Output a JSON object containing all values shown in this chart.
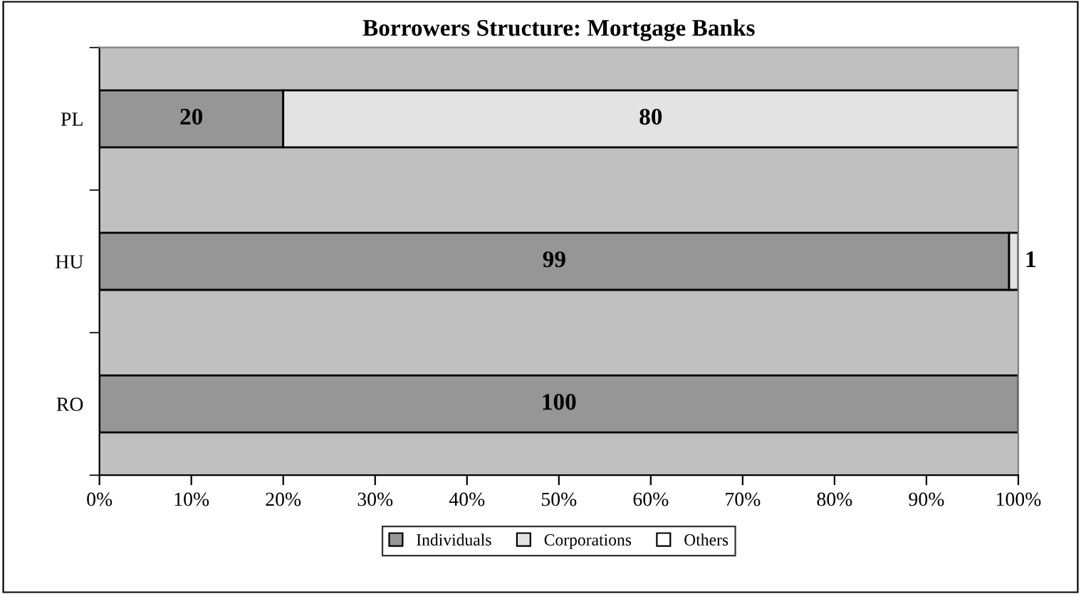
{
  "chart_data": {
    "type": "bar",
    "orientation": "horizontal",
    "stacked": true,
    "title": "Borrowers Structure: Mortgage Banks",
    "categories": [
      "PL",
      "HU",
      "RO"
    ],
    "series": [
      {
        "name": "Individuals",
        "color": "#969696",
        "values": [
          20,
          99,
          100
        ],
        "value_labels": [
          "20",
          "99",
          "100"
        ]
      },
      {
        "name": "Corporations",
        "color": "#e3e3e3",
        "values": [
          80,
          1,
          null
        ],
        "value_labels": [
          "80",
          "1",
          null
        ]
      },
      {
        "name": "Others",
        "color": "#ffffff",
        "values": [
          null,
          null,
          null
        ]
      }
    ],
    "xlim": [
      0,
      100
    ],
    "xticks": [
      {
        "value": 0,
        "label": "0%"
      },
      {
        "value": 10,
        "label": "10%"
      },
      {
        "value": 20,
        "label": "20%"
      },
      {
        "value": 30,
        "label": "30%"
      },
      {
        "value": 40,
        "label": "40%"
      },
      {
        "value": 50,
        "label": "50%"
      },
      {
        "value": 60,
        "label": "60%"
      },
      {
        "value": 70,
        "label": "70%"
      },
      {
        "value": 80,
        "label": "80%"
      },
      {
        "value": 90,
        "label": "90%"
      },
      {
        "value": 100,
        "label": "100%"
      }
    ],
    "grid": false,
    "legend": "bottom"
  }
}
